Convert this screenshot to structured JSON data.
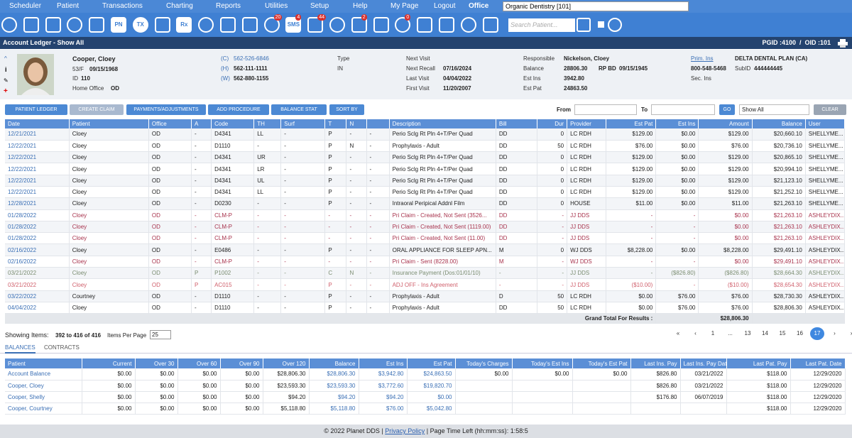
{
  "nav": {
    "menu": [
      "Scheduler",
      "Patient",
      "Transactions",
      "Charting",
      "Reports",
      "Utilities",
      "Setup",
      "Help",
      "My Page",
      "Logout"
    ],
    "office_label": "Office",
    "office_value": "Organic Dentistry [101]"
  },
  "toolbar": {
    "labels": {
      "pn": "PN",
      "tx": "TX",
      "rx": "Rx",
      "sms": "SMS"
    },
    "badges": [
      "20",
      "4",
      "44",
      "2",
      "0"
    ],
    "search_placeholder": "Search Patient..."
  },
  "header": {
    "title": "Account Ledger - Show All",
    "ids": "PGID :4100  /  OID :101"
  },
  "patient": {
    "name": "Cooper, Cloey",
    "age_sex": "53/F",
    "dob": "09/15/1968",
    "id_label": "ID",
    "id": "110",
    "home_office_label": "Home Office",
    "home_office": "OD",
    "phones": [
      [
        "(C)",
        "562-526-6846"
      ],
      [
        "(H)",
        "562-111-1111"
      ],
      [
        "(W)",
        "562-880-1155"
      ]
    ],
    "type_label": "Type",
    "type": "IN",
    "visits": [
      [
        "Next Visit",
        null
      ],
      [
        "Next Recall",
        "07/16/2024"
      ],
      [
        "Last Visit",
        "04/04/2022"
      ],
      [
        "First Visit",
        "11/20/2007"
      ]
    ],
    "account": [
      [
        "Responsible",
        "Nickelson, Cloey"
      ],
      [
        "Balance",
        "28806.30"
      ],
      [
        "Est Ins",
        "3942.80"
      ],
      [
        "Est Pat",
        "24863.50"
      ]
    ],
    "rp_bd_label": "RP BD",
    "rp_bd": "09/15/1945",
    "insurance": {
      "prim_label": "Prim. Ins",
      "prim": "DELTA DENTAL PLAN (CA)",
      "phone": "800-548-5468",
      "subid_label": "SubID",
      "subid": "444444445",
      "sec_label": "Sec. Ins"
    }
  },
  "actions": {
    "buttons": [
      "PATIENT LEDGER",
      "CREATE CLAIM",
      "PAYMENTS/ADJUSTMENTS",
      "ADD PROCEDURE",
      "BALANCE STAT",
      "SORT BY"
    ],
    "from_label": "From",
    "to_label": "To",
    "go": "GO",
    "show": "Show All",
    "clear": "CLEAR"
  },
  "ledger": {
    "columns": [
      "Date",
      "Patient",
      "Office",
      "A",
      "Code",
      "TH",
      "Surf",
      "T",
      "N",
      null,
      "Description",
      "Bill",
      "Dur",
      "Provider",
      "Est Pat",
      "Est Ins",
      "Amount",
      "Balance",
      "User"
    ],
    "rows": [
      [
        "12/21/2021",
        "Cloey",
        "OD",
        "-",
        "D4341",
        "LL",
        "-",
        "P",
        "-",
        "-",
        "Perio Sclg Rt Pln 4+T/Per Quad",
        "DD",
        "0",
        "LC RDH",
        "$129.00",
        "$0.00",
        "$129.00",
        "$20,660.10",
        "SHELLYME..."
      ],
      [
        "12/22/2021",
        "Cloey",
        "OD",
        "-",
        "D1110",
        "-",
        "-",
        "P",
        "N",
        "-",
        "Prophylaxis - Adult",
        "DD",
        "50",
        "LC RDH",
        "$76.00",
        "$0.00",
        "$76.00",
        "$20,736.10",
        "SHELLYME..."
      ],
      [
        "12/22/2021",
        "Cloey",
        "OD",
        "-",
        "D4341",
        "UR",
        "-",
        "P",
        "-",
        "-",
        "Perio Sclg Rt Pln 4+T/Per Quad",
        "DD",
        "0",
        "LC RDH",
        "$129.00",
        "$0.00",
        "$129.00",
        "$20,865.10",
        "SHELLYME..."
      ],
      [
        "12/22/2021",
        "Cloey",
        "OD",
        "-",
        "D4341",
        "LR",
        "-",
        "P",
        "-",
        "-",
        "Perio Sclg Rt Pln 4+T/Per Quad",
        "DD",
        "0",
        "LC RDH",
        "$129.00",
        "$0.00",
        "$129.00",
        "$20,994.10",
        "SHELLYME..."
      ],
      [
        "12/22/2021",
        "Cloey",
        "OD",
        "-",
        "D4341",
        "UL",
        "-",
        "P",
        "-",
        "-",
        "Perio Sclg Rt Pln 4+T/Per Quad",
        "DD",
        "0",
        "LC RDH",
        "$129.00",
        "$0.00",
        "$129.00",
        "$21,123.10",
        "SHELLYME..."
      ],
      [
        "12/22/2021",
        "Cloey",
        "OD",
        "-",
        "D4341",
        "LL",
        "-",
        "P",
        "-",
        "-",
        "Perio Sclg Rt Pln 4+T/Per Quad",
        "DD",
        "0",
        "LC RDH",
        "$129.00",
        "$0.00",
        "$129.00",
        "$21,252.10",
        "SHELLYME..."
      ],
      [
        "12/28/2021",
        "Cloey",
        "OD",
        "-",
        "D0230",
        "-",
        "-",
        "P",
        "-",
        "-",
        "Intraoral Peripical Addnl Film",
        "DD",
        "0",
        "HOUSE",
        "$11.00",
        "$0.00",
        "$11.00",
        "$21,263.10",
        "SHELLYME..."
      ],
      [
        "01/28/2022",
        "Cloey",
        "OD",
        "-",
        "CLM-P",
        "-",
        "-",
        "-",
        "-",
        "-",
        "Pri Claim - Created, Not Sent (3526...",
        "DD",
        "-",
        "JJ DDS",
        "-",
        "-",
        "$0.00",
        "$21,263.10",
        "ASHLEYDIX..."
      ],
      [
        "01/28/2022",
        "Cloey",
        "OD",
        "-",
        "CLM-P",
        "-",
        "-",
        "-",
        "-",
        "-",
        "Pri Claim - Created, Not Sent (1119.00)",
        "DD",
        "-",
        "JJ DDS",
        "-",
        "-",
        "$0.00",
        "$21,263.10",
        "ASHLEYDIX..."
      ],
      [
        "01/28/2022",
        "Cloey",
        "OD",
        "-",
        "CLM-P",
        "-",
        "-",
        "-",
        "-",
        "-",
        "Pri Claim - Created, Not Sent (11.00)",
        "DD",
        "-",
        "JJ DDS",
        "-",
        "-",
        "$0.00",
        "$21,263.10",
        "ASHLEYDIX..."
      ],
      [
        "02/16/2022",
        "Cloey",
        "OD",
        "-",
        "E0486",
        "-",
        "-",
        "P",
        "-",
        "-",
        "ORAL APPLIANCE FOR SLEEP APN...",
        "M",
        "0",
        "WJ DDS",
        "$8,228.00",
        "$0.00",
        "$8,228.00",
        "$29,491.10",
        "ASHLEYDIX..."
      ],
      [
        "02/16/2022",
        "Cloey",
        "OD",
        "-",
        "CLM-P",
        "-",
        "-",
        "-",
        "-",
        "-",
        "Pri Claim - Sent (8228.00)",
        "M",
        "-",
        "WJ DDS",
        "-",
        "-",
        "$0.00",
        "$29,491.10",
        "ASHLEYDIX..."
      ],
      [
        "03/21/2022",
        "Cloey",
        "OD",
        "P",
        "P1002",
        "-",
        "-",
        "C",
        "N",
        "-",
        "Insurance Payment (Dos:01/01/10)",
        "-",
        "-",
        "JJ DDS",
        "-",
        "($826.80)",
        "($826.80)",
        "$28,664.30",
        "ASHLEYDIX..."
      ],
      [
        "03/21/2022",
        "Cloey",
        "OD",
        "P",
        "AC015",
        "-",
        "-",
        "P",
        "-",
        "-",
        "ADJ OFF - Ins Agreement",
        "-",
        "-",
        "JJ DDS",
        "($10.00)",
        "-",
        "($10.00)",
        "$28,654.30",
        "ASHLEYDIX..."
      ],
      [
        "03/22/2022",
        "Courtney",
        "OD",
        "-",
        "D1110",
        "-",
        "-",
        "P",
        "-",
        "-",
        "Prophylaxis - Adult",
        "D",
        "50",
        "LC RDH",
        "$0.00",
        "$76.00",
        "$76.00",
        "$28,730.30",
        "ASHLEYDIX..."
      ],
      [
        "04/04/2022",
        "Cloey",
        "OD",
        "-",
        "D1110",
        "-",
        "-",
        "P",
        "-",
        "-",
        "Prophylaxis - Adult",
        "DD",
        "50",
        "LC RDH",
        "$0.00",
        "$76.00",
        "$76.00",
        "$28,806.30",
        "ASHLEYDIX..."
      ]
    ],
    "grand_total_label": "Grand Total For Results :",
    "grand_total": "$28,806.30"
  },
  "pagination": {
    "showing_label": "Showing Items:",
    "showing": "392 to 416 of 416",
    "per_page_label": "Items Per Page",
    "per_page": "25",
    "pages": [
      "«",
      "‹",
      "1",
      "...",
      "13",
      "14",
      "15",
      "16",
      "17",
      "›",
      "»"
    ]
  },
  "tabs": [
    "BALANCES",
    "CONTRACTS"
  ],
  "balances": {
    "columns": [
      "Patient",
      "Current",
      "Over 30",
      "Over 60",
      "Over 90",
      "Over 120",
      "Balance",
      "Est Ins",
      "Est Pat",
      "Today's Charges",
      "Today's Est Ins",
      "Today's Est Pat",
      "Last Ins. Pay",
      "Last Ins. Pay Date",
      "Last Pat. Pay",
      "Last Pat. Date"
    ],
    "rows": [
      [
        "Account Balance",
        "$0.00",
        "$0.00",
        "$0.00",
        "$0.00",
        "$28,806.30",
        "$28,806.30",
        "$3,942.80",
        "$24,863.50",
        "$0.00",
        "$0.00",
        "$0.00",
        "$826.80",
        "03/21/2022",
        "$118.00",
        "12/29/2020"
      ],
      [
        "Cooper, Cloey",
        "$0.00",
        "$0.00",
        "$0.00",
        "$0.00",
        "$23,593.30",
        "$23,593.30",
        "$3,772.60",
        "$19,820.70",
        null,
        null,
        null,
        "$826.80",
        "03/21/2022",
        "$118.00",
        "12/29/2020"
      ],
      [
        "Cooper, Shelly",
        "$0.00",
        "$0.00",
        "$0.00",
        "$0.00",
        "$94.20",
        "$94.20",
        "$94.20",
        "$0.00",
        null,
        null,
        null,
        "$176.80",
        "06/07/2019",
        "$118.00",
        "12/29/2020"
      ],
      [
        "Cooper, Courtney",
        "$0.00",
        "$0.00",
        "$0.00",
        "$0.00",
        "$5,118.80",
        "$5,118.80",
        "$76.00",
        "$5,042.80",
        null,
        null,
        null,
        null,
        null,
        "$118.00",
        "12/29/2020"
      ]
    ]
  },
  "footer": {
    "copyright": "© 2022 Planet DDS",
    "privacy": "Privacy Policy",
    "time_label": "Page Time Left (hh:mm:ss)",
    "time": "1:58:5"
  }
}
